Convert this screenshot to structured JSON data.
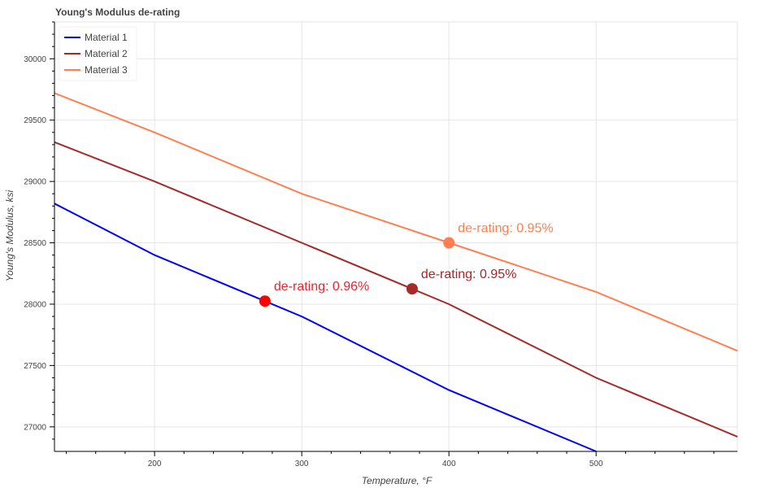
{
  "chart_data": {
    "type": "line",
    "title": "Young's Modulus de-rating",
    "xlabel": "Temperature, °F",
    "ylabel": "Young's Modulus, ksi",
    "xlim": [
      132,
      596
    ],
    "ylim": [
      26800,
      30300
    ],
    "xticks": [
      200,
      300,
      400,
      500
    ],
    "yticks": [
      27000,
      27500,
      28000,
      28500,
      29000,
      29500,
      30000
    ],
    "grid": true,
    "legend_position": "top-left",
    "series": [
      {
        "name": "Material 1",
        "color": "#0000ff",
        "x": [
          132,
          200,
          300,
          400,
          500
        ],
        "y": [
          28820,
          28400,
          27900,
          27300,
          26800
        ]
      },
      {
        "name": "Material 2",
        "color": "#a52a2a",
        "x": [
          132,
          200,
          300,
          400,
          500,
          596
        ],
        "y": [
          29320,
          29000,
          28500,
          28000,
          27400,
          26920
        ]
      },
      {
        "name": "Material 3",
        "color": "#ff7f50",
        "x": [
          132,
          200,
          300,
          400,
          500,
          596
        ],
        "y": [
          29720,
          29400,
          28900,
          28500,
          28100,
          27620
        ]
      }
    ],
    "annotations": [
      {
        "x": 275,
        "y": 28025,
        "text": "de-rating: 0.96%",
        "marker_color": "#ff0000",
        "text_color": "#e8272d"
      },
      {
        "x": 375,
        "y": 28125,
        "text": "de-rating: 0.95%",
        "marker_color": "#a52a2a",
        "text_color": "#b22222"
      },
      {
        "x": 400,
        "y": 28500,
        "text": "de-rating: 0.95%",
        "marker_color": "#ff7f50",
        "text_color": "#ff7f50"
      }
    ]
  }
}
